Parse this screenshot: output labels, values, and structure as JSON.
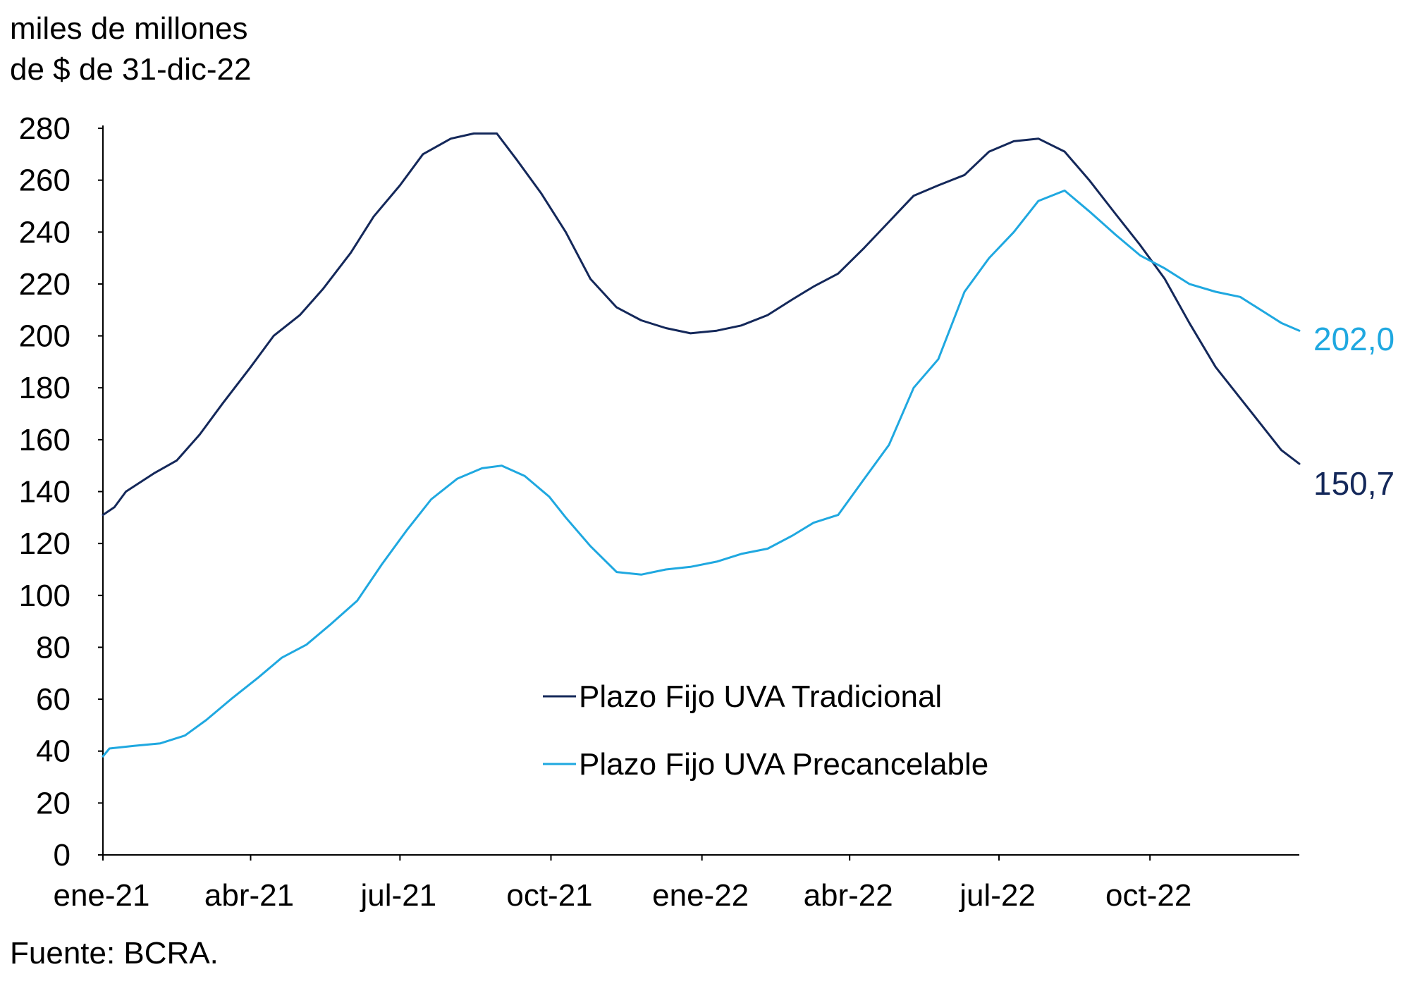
{
  "header": {
    "unit_line1": "miles de millones",
    "unit_line2": "de $ de 31-dic-22"
  },
  "footer": {
    "source": "Fuente: BCRA."
  },
  "colors": {
    "tradicional": "#14285a",
    "precancelable": "#1fa8e0",
    "axis": "#000000"
  },
  "chart_data": {
    "type": "line",
    "ylim": [
      0,
      280
    ],
    "yticks": [
      0,
      20,
      40,
      60,
      80,
      100,
      120,
      140,
      160,
      180,
      200,
      220,
      240,
      260,
      280
    ],
    "xlim": [
      "2021-01-01",
      "2022-12-31"
    ],
    "xticks": [
      {
        "date": "2021-01-01",
        "label": "ene-21"
      },
      {
        "date": "2021-04-01",
        "label": "abr-21"
      },
      {
        "date": "2021-07-01",
        "label": "jul-21"
      },
      {
        "date": "2021-10-01",
        "label": "oct-21"
      },
      {
        "date": "2022-01-01",
        "label": "ene-22"
      },
      {
        "date": "2022-04-01",
        "label": "abr-22"
      },
      {
        "date": "2022-07-01",
        "label": "jul-22"
      },
      {
        "date": "2022-10-01",
        "label": "oct-22"
      }
    ],
    "grid": false,
    "legend_position": "bottom-center",
    "series": [
      {
        "name": "Plazo Fijo UVA Tradicional",
        "color": "#14285a",
        "end_label": "150,7",
        "points": [
          [
            "2021-01-01",
            131
          ],
          [
            "2021-01-08",
            134
          ],
          [
            "2021-01-15",
            140
          ],
          [
            "2021-02-01",
            147
          ],
          [
            "2021-02-15",
            152
          ],
          [
            "2021-03-01",
            162
          ],
          [
            "2021-03-15",
            174
          ],
          [
            "2021-04-01",
            188
          ],
          [
            "2021-04-15",
            200
          ],
          [
            "2021-05-01",
            208
          ],
          [
            "2021-05-15",
            218
          ],
          [
            "2021-06-01",
            232
          ],
          [
            "2021-06-15",
            246
          ],
          [
            "2021-07-01",
            258
          ],
          [
            "2021-07-15",
            270
          ],
          [
            "2021-08-01",
            276
          ],
          [
            "2021-08-15",
            278
          ],
          [
            "2021-08-29",
            278
          ],
          [
            "2021-09-10",
            268
          ],
          [
            "2021-09-25",
            255
          ],
          [
            "2021-10-10",
            240
          ],
          [
            "2021-10-25",
            222
          ],
          [
            "2021-11-10",
            211
          ],
          [
            "2021-11-25",
            206
          ],
          [
            "2021-12-10",
            203
          ],
          [
            "2021-12-25",
            201
          ],
          [
            "2022-01-10",
            202
          ],
          [
            "2022-01-25",
            204
          ],
          [
            "2022-02-10",
            208
          ],
          [
            "2022-02-25",
            214
          ],
          [
            "2022-03-10",
            219
          ],
          [
            "2022-03-25",
            224
          ],
          [
            "2022-04-10",
            234
          ],
          [
            "2022-04-25",
            244
          ],
          [
            "2022-05-10",
            254
          ],
          [
            "2022-05-25",
            258
          ],
          [
            "2022-06-10",
            262
          ],
          [
            "2022-06-25",
            271
          ],
          [
            "2022-07-10",
            275
          ],
          [
            "2022-07-25",
            276
          ],
          [
            "2022-08-10",
            271
          ],
          [
            "2022-08-25",
            260
          ],
          [
            "2022-09-10",
            247
          ],
          [
            "2022-09-25",
            235
          ],
          [
            "2022-10-10",
            222
          ],
          [
            "2022-10-25",
            205
          ],
          [
            "2022-11-10",
            188
          ],
          [
            "2022-11-25",
            176
          ],
          [
            "2022-12-10",
            164
          ],
          [
            "2022-12-20",
            156
          ],
          [
            "2022-12-31",
            150.7
          ]
        ]
      },
      {
        "name": "Plazo Fijo UVA Precancelable",
        "color": "#1fa8e0",
        "end_label": "202,0",
        "points": [
          [
            "2021-01-01",
            38
          ],
          [
            "2021-01-05",
            41
          ],
          [
            "2021-01-20",
            42
          ],
          [
            "2021-02-05",
            43
          ],
          [
            "2021-02-20",
            46
          ],
          [
            "2021-03-05",
            52
          ],
          [
            "2021-03-20",
            60
          ],
          [
            "2021-04-05",
            68
          ],
          [
            "2021-04-20",
            76
          ],
          [
            "2021-05-05",
            81
          ],
          [
            "2021-05-20",
            89
          ],
          [
            "2021-06-05",
            98
          ],
          [
            "2021-06-20",
            112
          ],
          [
            "2021-07-05",
            125
          ],
          [
            "2021-07-20",
            137
          ],
          [
            "2021-08-05",
            145
          ],
          [
            "2021-08-20",
            149
          ],
          [
            "2021-09-01",
            150
          ],
          [
            "2021-09-15",
            146
          ],
          [
            "2021-09-30",
            138
          ],
          [
            "2021-10-10",
            130
          ],
          [
            "2021-10-25",
            119
          ],
          [
            "2021-11-10",
            109
          ],
          [
            "2021-11-25",
            108
          ],
          [
            "2021-12-10",
            110
          ],
          [
            "2021-12-25",
            111
          ],
          [
            "2022-01-10",
            113
          ],
          [
            "2022-01-25",
            116
          ],
          [
            "2022-02-10",
            118
          ],
          [
            "2022-02-25",
            123
          ],
          [
            "2022-03-10",
            128
          ],
          [
            "2022-03-25",
            131
          ],
          [
            "2022-04-10",
            145
          ],
          [
            "2022-04-25",
            158
          ],
          [
            "2022-05-10",
            180
          ],
          [
            "2022-05-25",
            191
          ],
          [
            "2022-06-10",
            217
          ],
          [
            "2022-06-25",
            230
          ],
          [
            "2022-07-10",
            240
          ],
          [
            "2022-07-25",
            252
          ],
          [
            "2022-08-10",
            256
          ],
          [
            "2022-08-25",
            248
          ],
          [
            "2022-09-10",
            239
          ],
          [
            "2022-09-25",
            231
          ],
          [
            "2022-10-10",
            226
          ],
          [
            "2022-10-25",
            220
          ],
          [
            "2022-11-10",
            217
          ],
          [
            "2022-11-25",
            215
          ],
          [
            "2022-12-10",
            209
          ],
          [
            "2022-12-20",
            205
          ],
          [
            "2022-12-31",
            202.0
          ]
        ]
      }
    ]
  }
}
